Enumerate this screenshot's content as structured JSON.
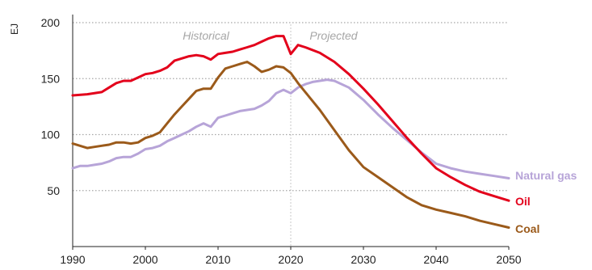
{
  "chart_data": {
    "type": "line",
    "title": "",
    "xlabel": "",
    "ylabel": "EJ",
    "xlim": [
      1990,
      2050
    ],
    "ylim": [
      0,
      200
    ],
    "x_ticks": [
      "1990",
      "2000",
      "2010",
      "2020",
      "2030",
      "2040",
      "2050"
    ],
    "y_ticks": [
      "50",
      "100",
      "150",
      "200"
    ],
    "grid": "horizontal dotted",
    "divider_year": 2020,
    "period_labels": {
      "historical": "Historical",
      "projected": "Projected"
    },
    "colors": {
      "oil": "#e3001b",
      "natural_gas": "#b7a4d8",
      "coal": "#9b5a1a",
      "grid": "#a6a6a6",
      "divider": "#c8c8c8"
    },
    "series": [
      {
        "name": "Natural gas",
        "color": "#b7a4d8",
        "points": [
          [
            1990,
            70
          ],
          [
            1991,
            72
          ],
          [
            1992,
            72
          ],
          [
            1993,
            73
          ],
          [
            1994,
            74
          ],
          [
            1995,
            76
          ],
          [
            1996,
            79
          ],
          [
            1997,
            80
          ],
          [
            1998,
            80
          ],
          [
            1999,
            83
          ],
          [
            2000,
            87
          ],
          [
            2001,
            88
          ],
          [
            2002,
            90
          ],
          [
            2003,
            94
          ],
          [
            2004,
            97
          ],
          [
            2005,
            100
          ],
          [
            2006,
            103
          ],
          [
            2007,
            107
          ],
          [
            2008,
            110
          ],
          [
            2009,
            107
          ],
          [
            2010,
            115
          ],
          [
            2011,
            117
          ],
          [
            2012,
            119
          ],
          [
            2013,
            121
          ],
          [
            2014,
            122
          ],
          [
            2015,
            123
          ],
          [
            2016,
            126
          ],
          [
            2017,
            130
          ],
          [
            2018,
            137
          ],
          [
            2019,
            140
          ],
          [
            2020,
            137
          ],
          [
            2021,
            142
          ],
          [
            2022,
            145
          ],
          [
            2023,
            147
          ],
          [
            2024,
            148
          ],
          [
            2025,
            149
          ],
          [
            2026,
            148
          ],
          [
            2028,
            142
          ],
          [
            2030,
            131
          ],
          [
            2032,
            118
          ],
          [
            2034,
            106
          ],
          [
            2036,
            95
          ],
          [
            2038,
            84
          ],
          [
            2040,
            74
          ],
          [
            2042,
            70
          ],
          [
            2044,
            67
          ],
          [
            2046,
            65
          ],
          [
            2048,
            63
          ],
          [
            2050,
            61
          ]
        ]
      },
      {
        "name": "Oil",
        "color": "#e3001b",
        "points": [
          [
            1990,
            135
          ],
          [
            1992,
            136
          ],
          [
            1994,
            138
          ],
          [
            1995,
            142
          ],
          [
            1996,
            146
          ],
          [
            1997,
            148
          ],
          [
            1998,
            148
          ],
          [
            1999,
            151
          ],
          [
            2000,
            154
          ],
          [
            2001,
            155
          ],
          [
            2002,
            157
          ],
          [
            2003,
            160
          ],
          [
            2004,
            166
          ],
          [
            2005,
            168
          ],
          [
            2006,
            170
          ],
          [
            2007,
            171
          ],
          [
            2008,
            170
          ],
          [
            2009,
            167
          ],
          [
            2010,
            172
          ],
          [
            2011,
            173
          ],
          [
            2012,
            174
          ],
          [
            2013,
            176
          ],
          [
            2014,
            178
          ],
          [
            2015,
            180
          ],
          [
            2016,
            183
          ],
          [
            2017,
            186
          ],
          [
            2018,
            188
          ],
          [
            2019,
            188
          ],
          [
            2020,
            172
          ],
          [
            2021,
            180
          ],
          [
            2022,
            178
          ],
          [
            2024,
            173
          ],
          [
            2026,
            165
          ],
          [
            2028,
            154
          ],
          [
            2030,
            141
          ],
          [
            2032,
            127
          ],
          [
            2034,
            112
          ],
          [
            2036,
            97
          ],
          [
            2038,
            83
          ],
          [
            2040,
            70
          ],
          [
            2042,
            62
          ],
          [
            2044,
            55
          ],
          [
            2046,
            49
          ],
          [
            2048,
            45
          ],
          [
            2050,
            41
          ]
        ]
      },
      {
        "name": "Coal",
        "color": "#9b5a1a",
        "points": [
          [
            1990,
            92
          ],
          [
            1991,
            90
          ],
          [
            1992,
            88
          ],
          [
            1993,
            89
          ],
          [
            1994,
            90
          ],
          [
            1995,
            91
          ],
          [
            1996,
            93
          ],
          [
            1997,
            93
          ],
          [
            1998,
            92
          ],
          [
            1999,
            93
          ],
          [
            2000,
            97
          ],
          [
            2001,
            99
          ],
          [
            2002,
            102
          ],
          [
            2003,
            110
          ],
          [
            2004,
            118
          ],
          [
            2005,
            125
          ],
          [
            2006,
            132
          ],
          [
            2007,
            139
          ],
          [
            2008,
            141
          ],
          [
            2009,
            141
          ],
          [
            2010,
            151
          ],
          [
            2011,
            159
          ],
          [
            2012,
            161
          ],
          [
            2013,
            163
          ],
          [
            2014,
            165
          ],
          [
            2015,
            161
          ],
          [
            2016,
            156
          ],
          [
            2017,
            158
          ],
          [
            2018,
            161
          ],
          [
            2019,
            160
          ],
          [
            2020,
            155
          ],
          [
            2021,
            146
          ],
          [
            2022,
            138
          ],
          [
            2024,
            122
          ],
          [
            2026,
            104
          ],
          [
            2028,
            86
          ],
          [
            2030,
            71
          ],
          [
            2032,
            62
          ],
          [
            2034,
            53
          ],
          [
            2036,
            44
          ],
          [
            2038,
            37
          ],
          [
            2040,
            33
          ],
          [
            2042,
            30
          ],
          [
            2044,
            27
          ],
          [
            2046,
            23
          ],
          [
            2048,
            20
          ],
          [
            2050,
            17
          ]
        ]
      }
    ]
  }
}
